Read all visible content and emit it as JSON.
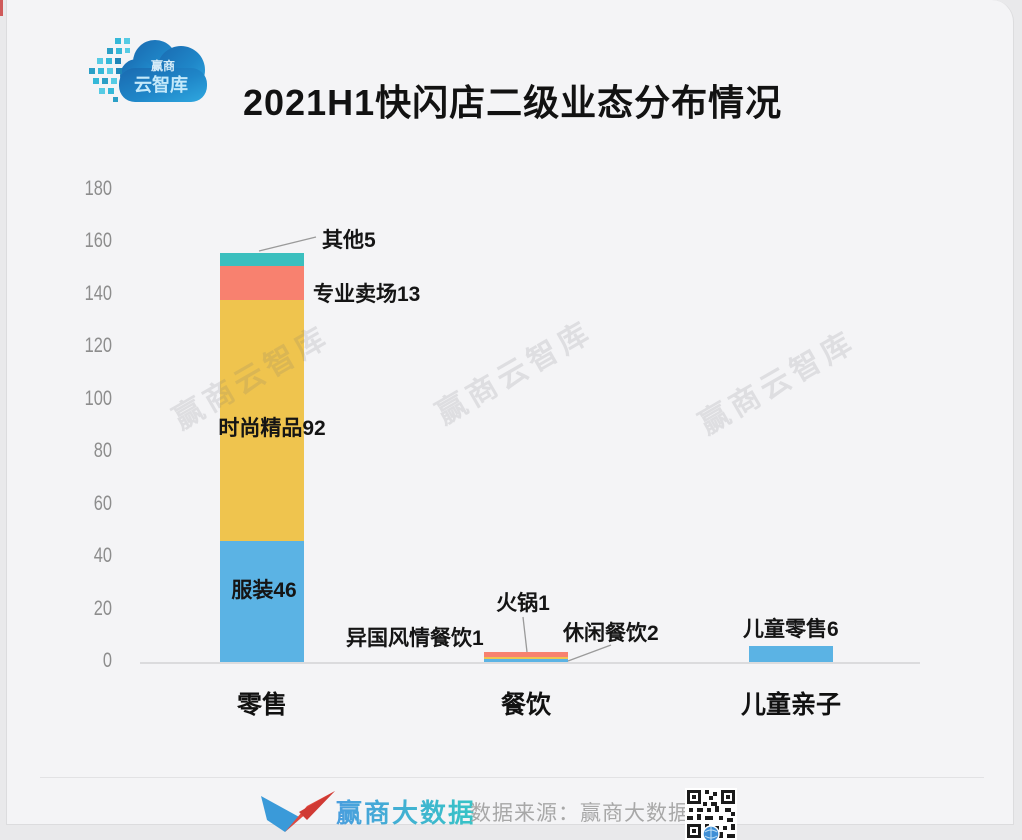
{
  "page": {
    "card_bg": "#f4f4f6",
    "outer_bg": "#e9e9eb",
    "accent_red_sliver": "#cf5a5a"
  },
  "header": {
    "logo_line1": "赢商",
    "logo_line2": "云智库",
    "title": "2021H1快闪店二级业态分布情况"
  },
  "watermark": {
    "text": "赢商云智库"
  },
  "chart_data": {
    "type": "bar",
    "stacked": true,
    "title": "2021H1快闪店二级业态分布情况",
    "xlabel": "",
    "ylabel": "",
    "categories": [
      "零售",
      "餐饮",
      "儿童亲子"
    ],
    "ylim": [
      0,
      180
    ],
    "yticks": [
      0,
      20,
      40,
      60,
      80,
      100,
      120,
      140,
      160,
      180
    ],
    "grid": false,
    "legend_position": "none",
    "category_totals": [
      156,
      4,
      6
    ],
    "segments": [
      {
        "category": "零售",
        "name": "服装",
        "value": 46,
        "color": "#5BB3E4",
        "label": "服装46"
      },
      {
        "category": "零售",
        "name": "时尚精品",
        "value": 92,
        "color": "#EFC44E",
        "label": "时尚精品92"
      },
      {
        "category": "零售",
        "name": "专业卖场",
        "value": 13,
        "color": "#F8816F",
        "label": "专业卖场13"
      },
      {
        "category": "零售",
        "name": "其他",
        "value": 5,
        "color": "#3BBFBE",
        "label": "其他5"
      },
      {
        "category": "餐饮",
        "name": "异国风情餐饮",
        "value": 1,
        "color": "#5BB3E4",
        "label": "异国风情餐饮1"
      },
      {
        "category": "餐饮",
        "name": "火锅",
        "value": 1,
        "color": "#EFC44E",
        "label": "火锅1"
      },
      {
        "category": "餐饮",
        "name": "休闲餐饮",
        "value": 2,
        "color": "#F8816F",
        "label": "休闲餐饮2"
      },
      {
        "category": "儿童亲子",
        "name": "儿童零售",
        "value": 6,
        "color": "#5BB3E4",
        "label": "儿童零售6"
      }
    ]
  },
  "footer": {
    "brand": "赢商大数据",
    "source": "数据来源：赢商大数据"
  }
}
